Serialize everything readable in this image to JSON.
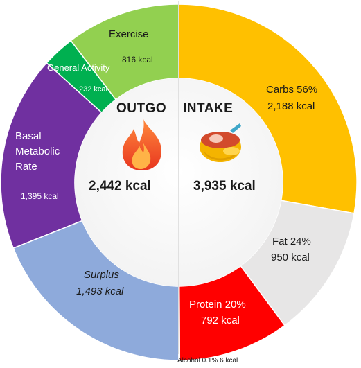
{
  "outgo": {
    "title": "OUTGO",
    "total": "2,442 kcal",
    "icon": "fire-icon",
    "segments": [
      {
        "name": "Exercise",
        "value_label": "816 kcal",
        "kcal": 816,
        "color": "#92d050"
      },
      {
        "name": "General Activity",
        "value_label": "232 kcal",
        "kcal": 232,
        "color": "#00b050"
      },
      {
        "name_lines": [
          "Basal",
          "Metabolic",
          "Rate"
        ],
        "value_label": "1,395 kcal",
        "kcal": 1395,
        "color": "#7030a0"
      },
      {
        "name": "Surplus",
        "value_label": "1,493 kcal",
        "kcal": 1493,
        "color": "#8eaadb"
      }
    ]
  },
  "intake": {
    "title": "INTAKE",
    "total": "3,935 kcal",
    "icon": "food-bowl-icon",
    "segments": [
      {
        "name": "Carbs 56%",
        "value_label": "2,188 kcal",
        "kcal": 2188,
        "percent": 56,
        "color": "#ffc000"
      },
      {
        "name": "Fat 24%",
        "value_label": "950 kcal",
        "kcal": 950,
        "percent": 24,
        "color": "#e7e6e6"
      },
      {
        "name": "Protein 20%",
        "value_label": "792 kcal",
        "kcal": 792,
        "percent": 20,
        "color": "#ff0000"
      },
      {
        "name": "Alcohol 0.1% 6 kcal",
        "kcal": 6,
        "percent": 0.1,
        "color": "#ffffff"
      }
    ]
  }
}
